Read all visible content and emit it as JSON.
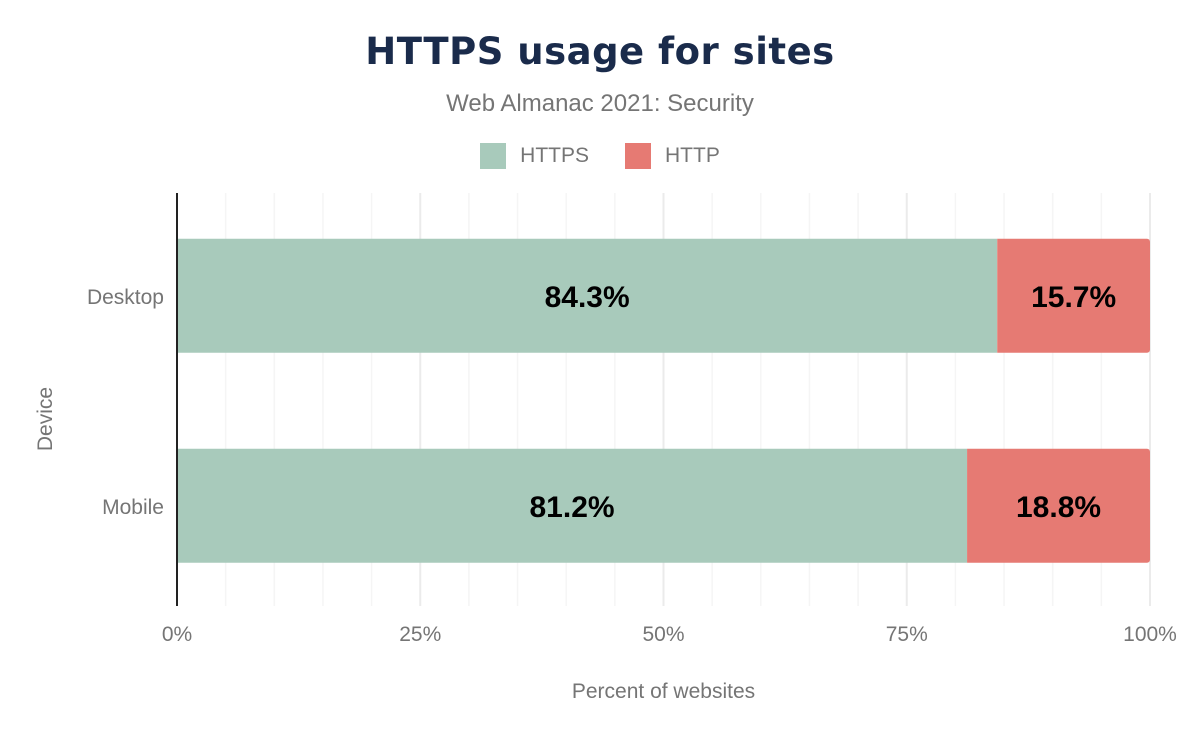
{
  "chart_data": {
    "type": "bar",
    "orientation": "horizontal",
    "stacked": true,
    "title": "HTTPS usage for sites",
    "subtitle": "Web Almanac 2021: Security",
    "xlabel": "Percent of websites",
    "ylabel": "Device",
    "xlim": [
      0,
      100
    ],
    "x_ticks": [
      "0%",
      "25%",
      "50%",
      "75%",
      "100%"
    ],
    "grid": true,
    "legend_position": "top",
    "categories": [
      "Desktop",
      "Mobile"
    ],
    "series": [
      {
        "name": "HTTPS",
        "color": "#a8cabb",
        "values": [
          84.3,
          81.2
        ],
        "labels": [
          "84.3%",
          "81.2%"
        ]
      },
      {
        "name": "HTTP",
        "color": "#e67a73",
        "values": [
          15.7,
          18.8
        ],
        "labels": [
          "15.7%",
          "18.8%"
        ]
      }
    ]
  }
}
